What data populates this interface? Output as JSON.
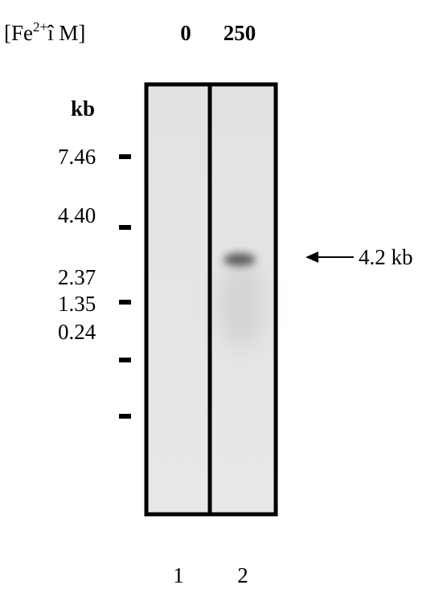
{
  "header": {
    "label_prefix": "[Fe",
    "label_superscript": "2+",
    "label_suffix": "î M]",
    "lanes": [
      "0",
      "250"
    ]
  },
  "marker": {
    "unit": "kb",
    "sizes": [
      "7.46",
      "4.40",
      "2.37",
      "1.35",
      "0.24"
    ]
  },
  "band_label": "4.2 kb",
  "lane_numbers": [
    "1",
    "2"
  ]
}
